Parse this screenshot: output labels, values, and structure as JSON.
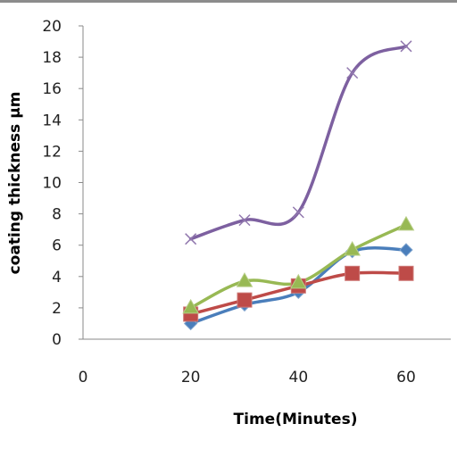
{
  "chart_data": {
    "type": "line",
    "title": "",
    "xlabel": "Time(Minutes)",
    "ylabel": "coating thickness µm",
    "xlim": [
      0,
      60
    ],
    "ylim": [
      0,
      20
    ],
    "x_ticks": [
      0,
      20,
      40,
      60
    ],
    "y_ticks": [
      0,
      2,
      4,
      6,
      8,
      10,
      12,
      14,
      16,
      18,
      20
    ],
    "grid": false,
    "legend": "none",
    "smooth": true,
    "series": [
      {
        "color": "#4a7ebb",
        "marker": "diamond",
        "x": [
          20,
          30,
          40,
          50,
          60
        ],
        "y": [
          1.0,
          2.2,
          3.0,
          5.6,
          5.7
        ]
      },
      {
        "color": "#be4b48",
        "marker": "square",
        "x": [
          20,
          30,
          40,
          50,
          60
        ],
        "y": [
          1.6,
          2.5,
          3.4,
          4.2,
          4.2
        ]
      },
      {
        "color": "#98b954",
        "marker": "triangle",
        "x": [
          20,
          30,
          40,
          50,
          60
        ],
        "y": [
          2.0,
          3.7,
          3.6,
          5.7,
          7.3
        ]
      },
      {
        "color": "#7d60a0",
        "marker": "x",
        "x": [
          20,
          30,
          40,
          50,
          60
        ],
        "y": [
          6.4,
          7.6,
          8.1,
          17.0,
          18.7
        ]
      }
    ]
  }
}
